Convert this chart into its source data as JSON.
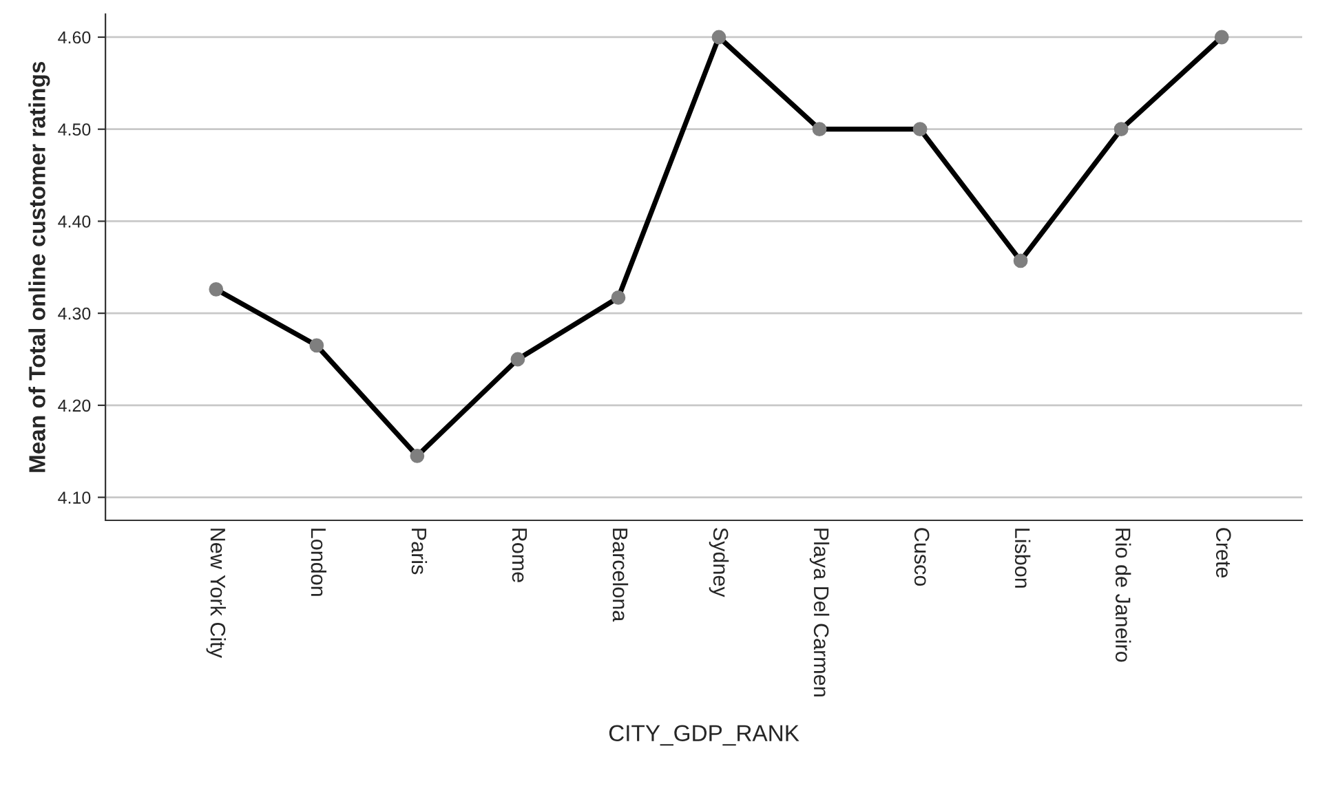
{
  "chart_data": {
    "type": "line",
    "xlabel": "CITY_GDP_RANK",
    "ylabel": "Mean of Total online customer ratings",
    "categories": [
      "New York City",
      "London",
      "Paris",
      "Rome",
      "Barcelona",
      "Sydney",
      "Playa Del Carmen",
      "Cusco",
      "Lisbon",
      "Rio de Janeiro",
      "Crete"
    ],
    "series": [
      {
        "color": "#000000",
        "values": [
          4.326,
          4.265,
          4.145,
          4.25,
          4.317,
          4.6,
          4.5,
          4.5,
          4.357,
          4.5,
          4.6
        ]
      }
    ],
    "ylim": [
      4.075,
      4.625
    ],
    "yticks": [
      {
        "value": 4.1,
        "label": "4.10"
      },
      {
        "value": 4.2,
        "label": "4.20"
      },
      {
        "value": 4.3,
        "label": "4.30"
      },
      {
        "value": 4.4,
        "label": "4.40"
      },
      {
        "value": 4.5,
        "label": "4.50"
      },
      {
        "value": 4.6,
        "label": "4.60"
      }
    ],
    "grid": "y",
    "marker": "circle",
    "line_style": "solid",
    "legend": false
  }
}
